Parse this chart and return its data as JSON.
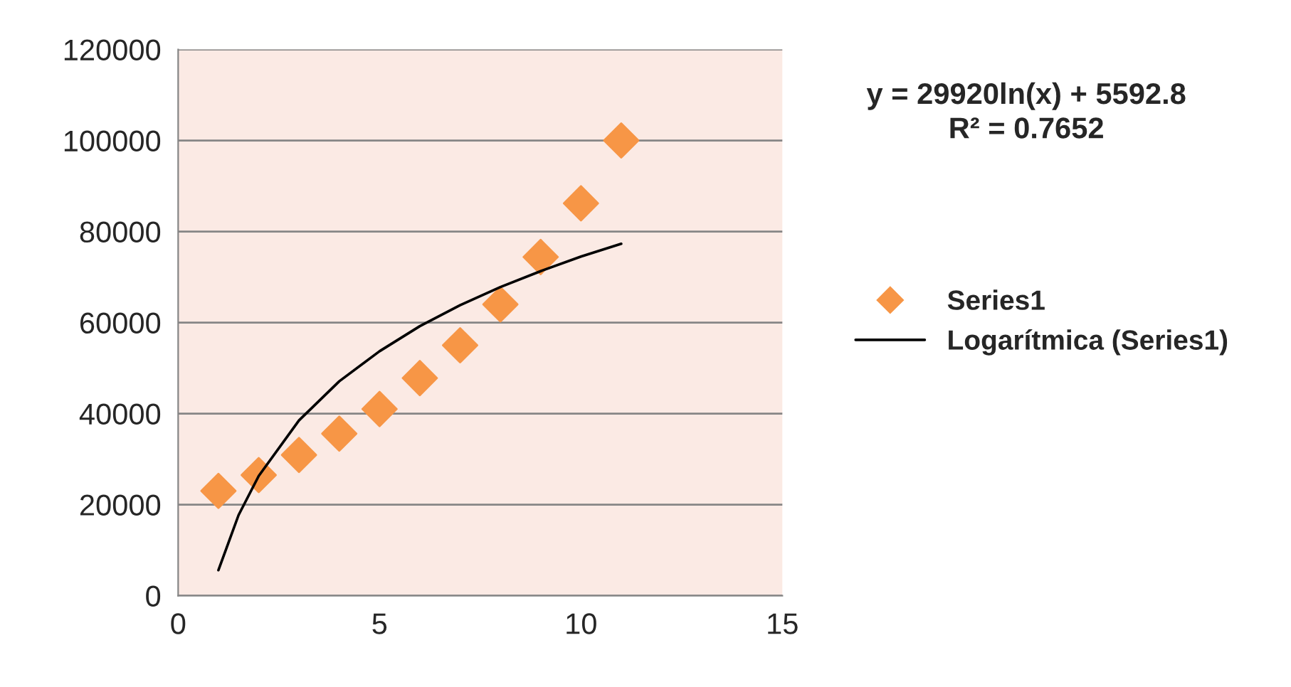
{
  "chart_data": {
    "type": "scatter",
    "series": [
      {
        "name": "Series1",
        "color": "#f79646",
        "marker": "diamond",
        "x": [
          1,
          2,
          3,
          4,
          5,
          6,
          7,
          8,
          9,
          10,
          11
        ],
        "values": [
          23000,
          26500,
          30900,
          35600,
          41000,
          47800,
          55000,
          64000,
          74400,
          86200,
          100000
        ]
      },
      {
        "name": "Logarítmica (Series1)",
        "type": "line",
        "color": "#000000",
        "marker": "none",
        "line_style": "solid",
        "x": [
          1,
          1.5,
          2,
          3,
          4,
          5,
          6,
          7,
          8,
          9,
          10,
          11
        ],
        "values": [
          5600,
          17700,
          26300,
          38500,
          47100,
          53700,
          59200,
          63800,
          67800,
          71300,
          74500,
          77300
        ]
      }
    ],
    "xlim": [
      0,
      15
    ],
    "xticks": [
      0,
      5,
      10,
      15
    ],
    "ylim": [
      0,
      120000
    ],
    "yticks": [
      0,
      20000,
      40000,
      60000,
      80000,
      100000,
      120000
    ],
    "grid": "y",
    "legend": "right",
    "annotations": [
      "y = 29920ln(x) + 5592.8",
      "R² = 0.7652"
    ]
  }
}
